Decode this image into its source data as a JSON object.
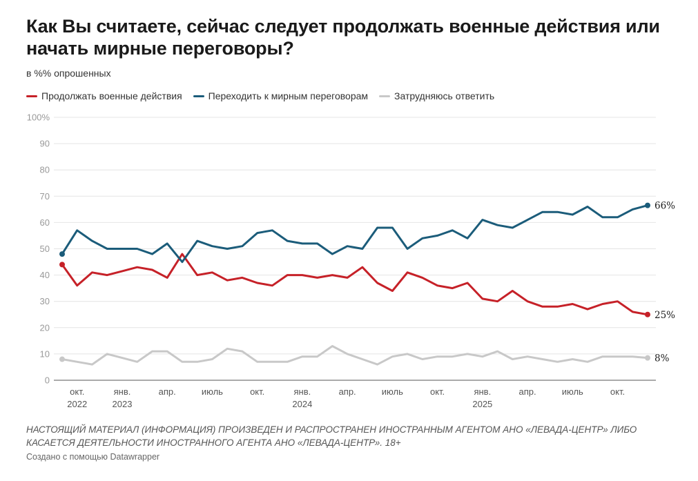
{
  "title": "Как Вы считаете, сейчас следует продолжать военные действия или начать мирные переговоры?",
  "subtitle": "в %% опрошенных",
  "notes": "НАСТОЯЩИЙ МАТЕРИАЛ (ИНФОРМАЦИЯ) ПРОИЗВЕДЕН И РАСПРОСТРАНЕН ИНОСТРАННЫМ АГЕНТОМ АНО «ЛЕВАДА-ЦЕНТР» ЛИБО КАСАЕТСЯ ДЕЯТЕЛЬНОСТИ ИНОСТРАННОГО АГЕНТА АНО «ЛЕВАДА-ЦЕНТР». 18+",
  "byline": "Создано с помощью Datawrapper",
  "legend": {
    "placement": "top-left",
    "items": [
      {
        "label": "Продолжать военные действия",
        "color": "#c62128"
      },
      {
        "label": "Переходить к мирным переговорам",
        "color": "#1b5c7a"
      },
      {
        "label": "Затрудняюсь ответить",
        "color": "#c8c8c8"
      }
    ]
  },
  "chart_data": {
    "type": "line",
    "title": "Как Вы считаете, сейчас следует продолжать военные действия или начать мирные переговоры?",
    "ylabel": "",
    "xlabel": "",
    "ylim": [
      0,
      100
    ],
    "grid": true,
    "y_ticks": [
      "0",
      "10",
      "20",
      "30",
      "40",
      "50",
      "60",
      "70",
      "80",
      "90",
      "100%"
    ],
    "x_ticks": [
      {
        "index": 1,
        "lines": [
          "окт.",
          "2022"
        ]
      },
      {
        "index": 4,
        "lines": [
          "янв.",
          "2023"
        ]
      },
      {
        "index": 7,
        "lines": [
          "апр."
        ]
      },
      {
        "index": 10,
        "lines": [
          "июль"
        ]
      },
      {
        "index": 13,
        "lines": [
          "окт."
        ]
      },
      {
        "index": 16,
        "lines": [
          "янв.",
          "2024"
        ]
      },
      {
        "index": 19,
        "lines": [
          "апр."
        ]
      },
      {
        "index": 22,
        "lines": [
          "июль"
        ]
      },
      {
        "index": 25,
        "lines": [
          "окт."
        ]
      },
      {
        "index": 28,
        "lines": [
          "янв.",
          "2025"
        ]
      },
      {
        "index": 31,
        "lines": [
          "апр."
        ]
      },
      {
        "index": 34,
        "lines": [
          "июль"
        ]
      },
      {
        "index": 37,
        "lines": [
          "окт."
        ]
      }
    ],
    "x": [
      "2022-09",
      "2022-10",
      "2022-11",
      "2022-12",
      "2023-01",
      "2023-02",
      "2023-03",
      "2023-04",
      "2023-05",
      "2023-06",
      "2023-07",
      "2023-08",
      "2023-09",
      "2023-10",
      "2023-11",
      "2023-12",
      "2024-01",
      "2024-02",
      "2024-03",
      "2024-04",
      "2024-05",
      "2024-06",
      "2024-07",
      "2024-08",
      "2024-09",
      "2024-10",
      "2024-11",
      "2024-12",
      "2025-01",
      "2025-02",
      "2025-03",
      "2025-04",
      "2025-05",
      "2025-06",
      "2025-07",
      "2025-08",
      "2025-09",
      "2025-10",
      "2025-11",
      "2025-12"
    ],
    "series": [
      {
        "name": "Продолжать военные действия",
        "color": "#c62128",
        "end_label": "25%",
        "values": [
          44,
          36,
          41,
          40,
          41.5,
          43,
          42,
          39,
          48,
          40,
          41,
          38,
          39,
          37,
          36,
          40,
          40,
          39,
          40,
          39,
          43,
          37,
          34,
          41,
          39,
          36,
          35,
          37,
          31,
          30,
          34,
          30,
          28,
          28,
          29,
          27,
          29,
          30,
          26,
          25
        ]
      },
      {
        "name": "Переходить к мирным переговорам",
        "color": "#1b5c7a",
        "end_label": "66%",
        "values": [
          48,
          57,
          53,
          50,
          50,
          50,
          48,
          52,
          45,
          53,
          51,
          50,
          51,
          56,
          57,
          53,
          52,
          52,
          48,
          51,
          50,
          58,
          58,
          50,
          54,
          55,
          57,
          54,
          61,
          59,
          58,
          61,
          64,
          64,
          63,
          66,
          62,
          62,
          65,
          66.5
        ]
      },
      {
        "name": "Затрудняюсь ответить",
        "color": "#c8c8c8",
        "end_label": "8%",
        "values": [
          8,
          7,
          6,
          10,
          8.5,
          7,
          11,
          11,
          7,
          7,
          8,
          12,
          11,
          7,
          7,
          7,
          9,
          9,
          13,
          10,
          8,
          6,
          9,
          10,
          8,
          9,
          9,
          10,
          9,
          11,
          8,
          9,
          8,
          7,
          8,
          7,
          9,
          9,
          9,
          8.5
        ]
      }
    ]
  }
}
